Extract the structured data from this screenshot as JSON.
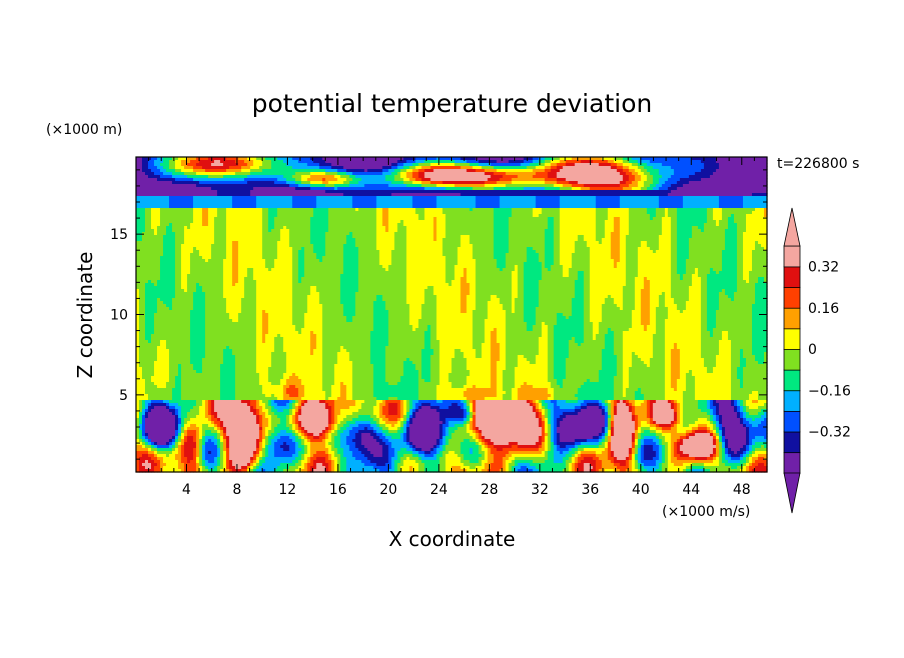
{
  "chart_data": {
    "type": "heatmap",
    "title": "potential temperature deviation",
    "xlabel": "X coordinate",
    "ylabel": "Z coordinate",
    "x_unit": "(×1000 m/s)",
    "y_unit": "(×1000 m)",
    "time_label": "t=226800 s",
    "xlim": [
      0,
      50
    ],
    "ylim": [
      0.2,
      19.8
    ],
    "x_ticks": [
      4,
      8,
      12,
      16,
      20,
      24,
      28,
      32,
      36,
      40,
      44,
      48
    ],
    "y_ticks": [
      5,
      10,
      15
    ],
    "colorbar": {
      "levels": [
        -0.48,
        -0.4,
        -0.32,
        -0.24,
        -0.16,
        -0.08,
        0,
        0.08,
        0.16,
        0.24,
        0.32,
        0.4
      ],
      "colors": [
        "#7020a8",
        "#1010a0",
        "#0050ff",
        "#00b0ff",
        "#00e880",
        "#80e020",
        "#ffff00",
        "#ffa000",
        "#ff4000",
        "#e01010",
        "#f4a6a0"
      ],
      "under_color": "#7020a8",
      "over_color": "#f4a6a0",
      "labels": [
        {
          "value": 0.32,
          "text": "0.32"
        },
        {
          "value": 0.16,
          "text": "0.16"
        },
        {
          "value": 0,
          "text": "0"
        },
        {
          "value": -0.16,
          "text": "−0.16"
        },
        {
          "value": -0.32,
          "text": "−0.32"
        }
      ]
    }
  }
}
